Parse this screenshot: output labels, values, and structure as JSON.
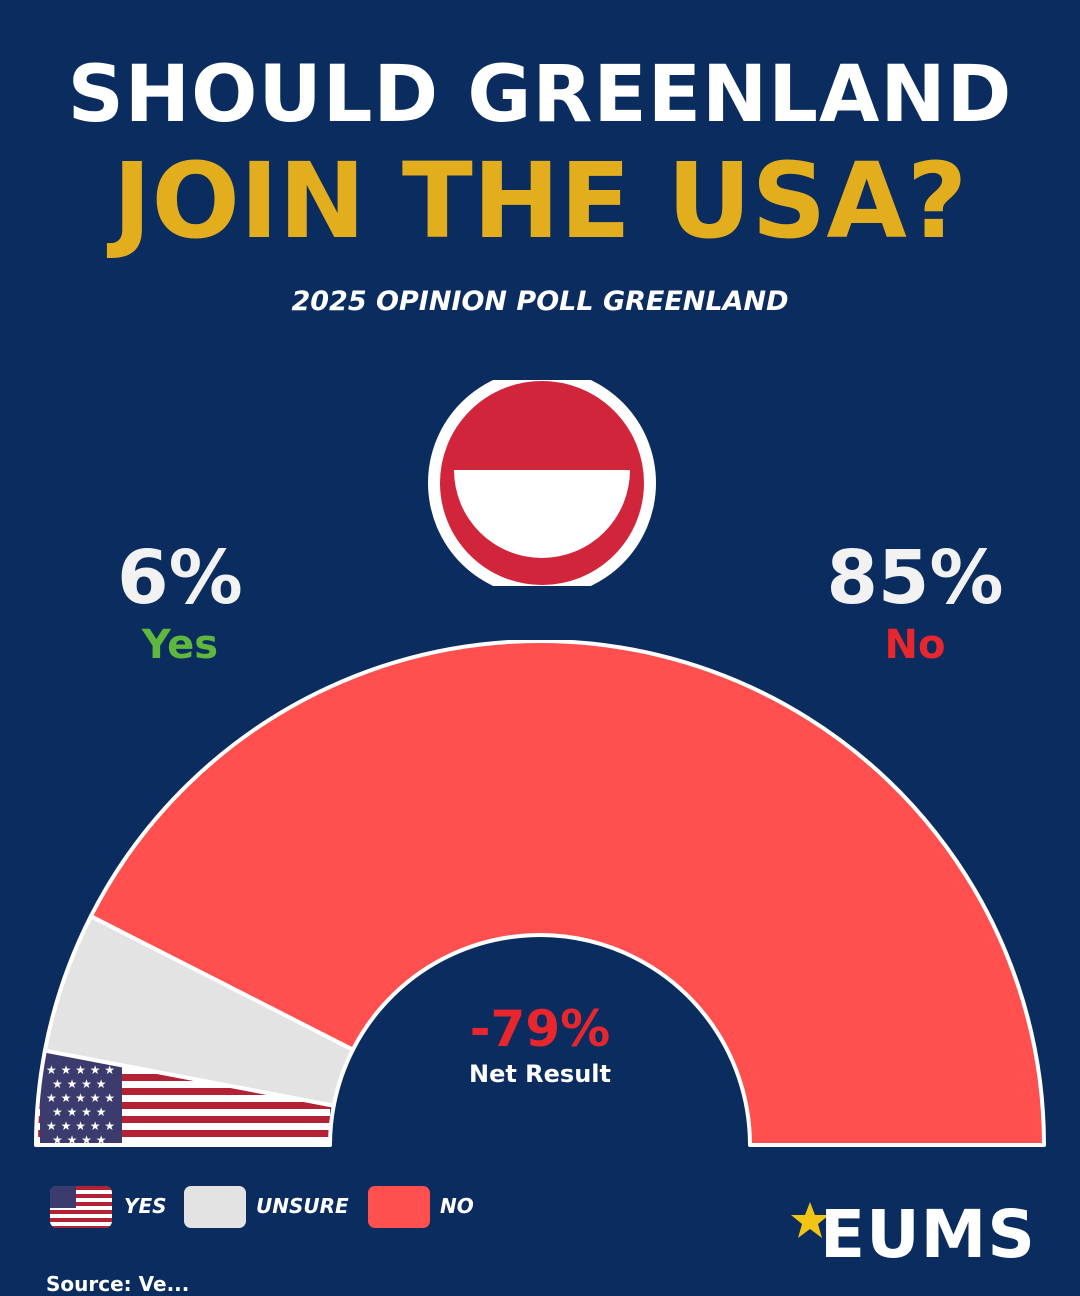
{
  "header": {
    "title_line1": "SHOULD GREENLAND",
    "title_line2": "JOIN THE USA?",
    "subtitle": "2025 OPINION POLL GREENLAND"
  },
  "callouts": {
    "yes_value": "6%",
    "yes_label": "Yes",
    "no_value": "85%",
    "no_label": "No",
    "net_value": "-79%",
    "net_label": "Net Result"
  },
  "chart_data": {
    "type": "pie",
    "style": "semi-circle donut gauge",
    "categories": [
      "YES",
      "UNSURE",
      "NO"
    ],
    "values": [
      6,
      9,
      85
    ],
    "colors": [
      "#b22234",
      "#e3e3e3",
      "#ff4f4f"
    ],
    "title": "SHOULD GREENLAND JOIN THE USA?",
    "subtitle": "2025 OPINION POLL GREENLAND",
    "legend": "bottom-left",
    "annotation": {
      "net_result": -79
    }
  },
  "legend": {
    "items": [
      {
        "label": "YES"
      },
      {
        "label": "UNSURE"
      },
      {
        "label": "NO"
      }
    ]
  },
  "colors": {
    "background": "#0b2c5e",
    "title_accent": "#e3ae1e",
    "yes": "#5fb83d",
    "no": "#e8262e",
    "logo_star": "#f2c416"
  },
  "brand": {
    "name": "EUMS"
  },
  "footer": {
    "source": "Source: Ve..."
  }
}
